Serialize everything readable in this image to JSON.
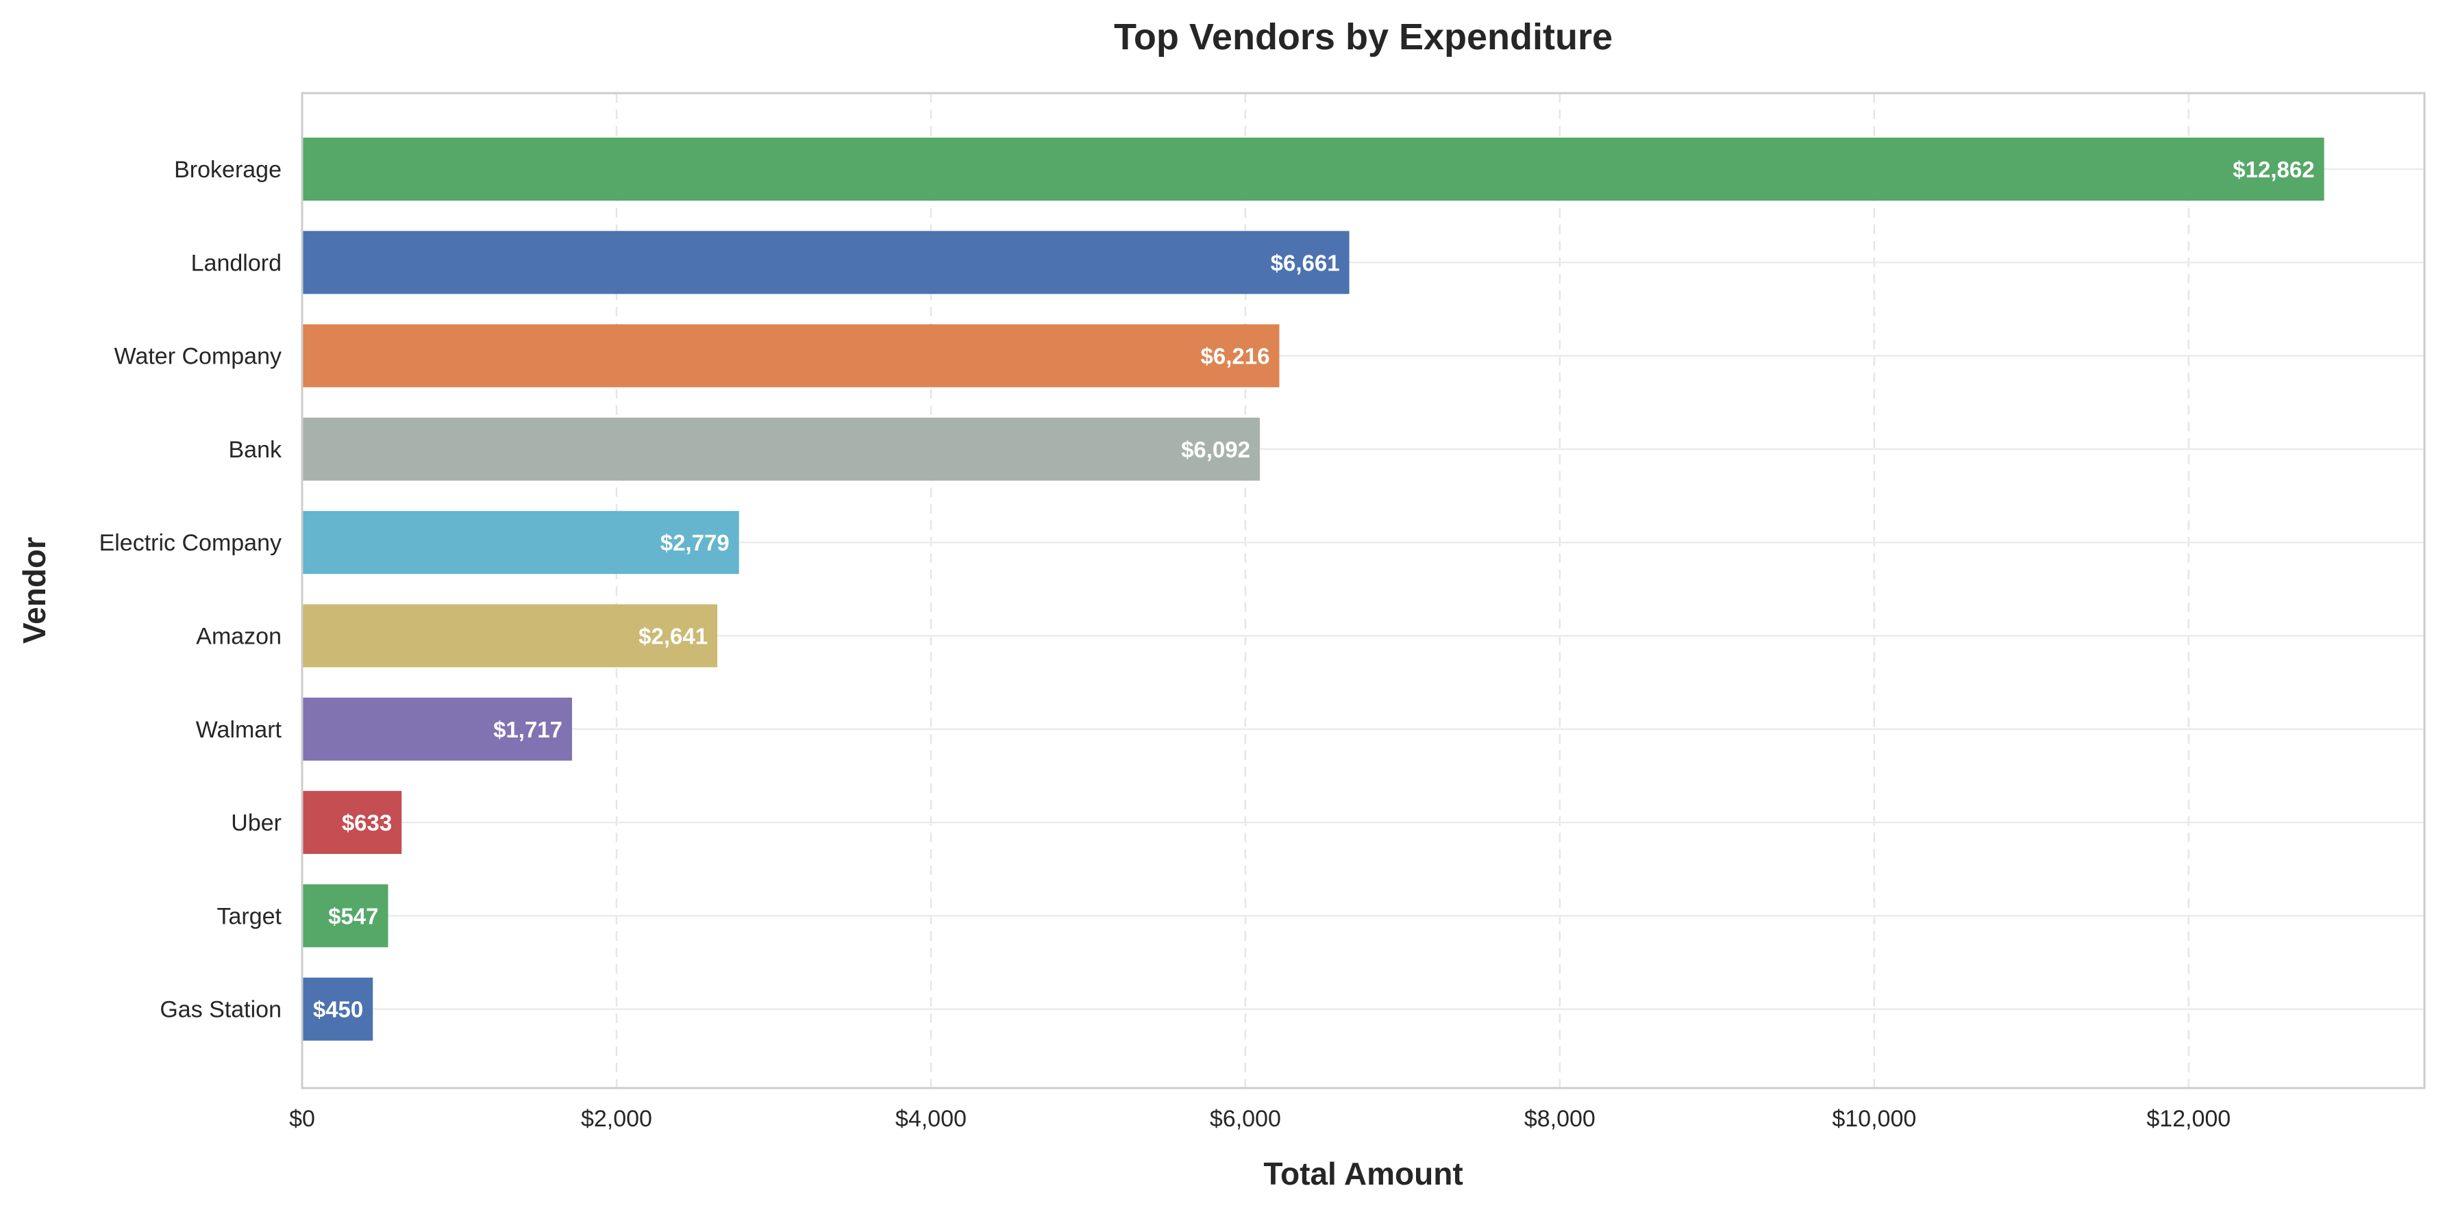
{
  "chart_data": {
    "type": "bar",
    "orientation": "horizontal",
    "title": "Top Vendors by Expenditure",
    "xlabel": "Total Amount",
    "ylabel": "Vendor",
    "xlim": [
      0,
      13500
    ],
    "x_ticks": [
      0,
      2000,
      4000,
      6000,
      8000,
      10000,
      12000
    ],
    "x_tick_labels": [
      "$0",
      "$2,000",
      "$4,000",
      "$6,000",
      "$8,000",
      "$10,000",
      "$12,000"
    ],
    "grid": true,
    "categories": [
      "Brokerage",
      "Landlord",
      "Water Company",
      "Bank",
      "Electric Company",
      "Amazon",
      "Walmart",
      "Uber",
      "Target",
      "Gas Station"
    ],
    "values": [
      12862,
      6661,
      6216,
      6092,
      2779,
      2641,
      1717,
      633,
      547,
      450
    ],
    "data_labels": [
      "$12,862",
      "$6,661",
      "$6,216",
      "$6,092",
      "$2,779",
      "$2,641",
      "$1,717",
      "$633",
      "$547",
      "$450"
    ],
    "colors": [
      "#55a868",
      "#4c72b0",
      "#dd8452",
      "#a8b2ad",
      "#64b5cd",
      "#ccb974",
      "#8172b2",
      "#c44e52",
      "#55a868",
      "#4c72b0"
    ]
  }
}
